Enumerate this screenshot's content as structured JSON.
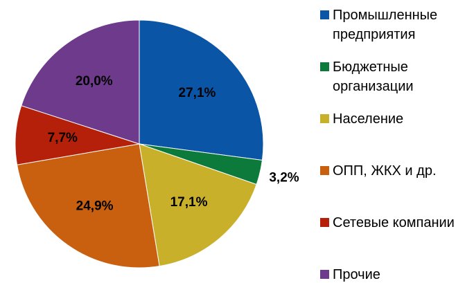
{
  "chart_data": {
    "type": "pie",
    "categories": [
      "Промышленные предприятия",
      "Бюджетные организации",
      "Население",
      "ОПП, ЖКХ и др.",
      "Сетевые компании",
      "Прочие"
    ],
    "values": [
      27.1,
      3.2,
      17.1,
      24.9,
      7.7,
      20.0
    ],
    "value_labels": [
      "27,1%",
      "3,2%",
      "17,1%",
      "24,9%",
      "7,7%",
      "20,0%"
    ],
    "colors": [
      "#0a55a6",
      "#0b7a3b",
      "#c9b02b",
      "#c8600f",
      "#b5200b",
      "#6d3a8c"
    ],
    "legend": "right"
  }
}
